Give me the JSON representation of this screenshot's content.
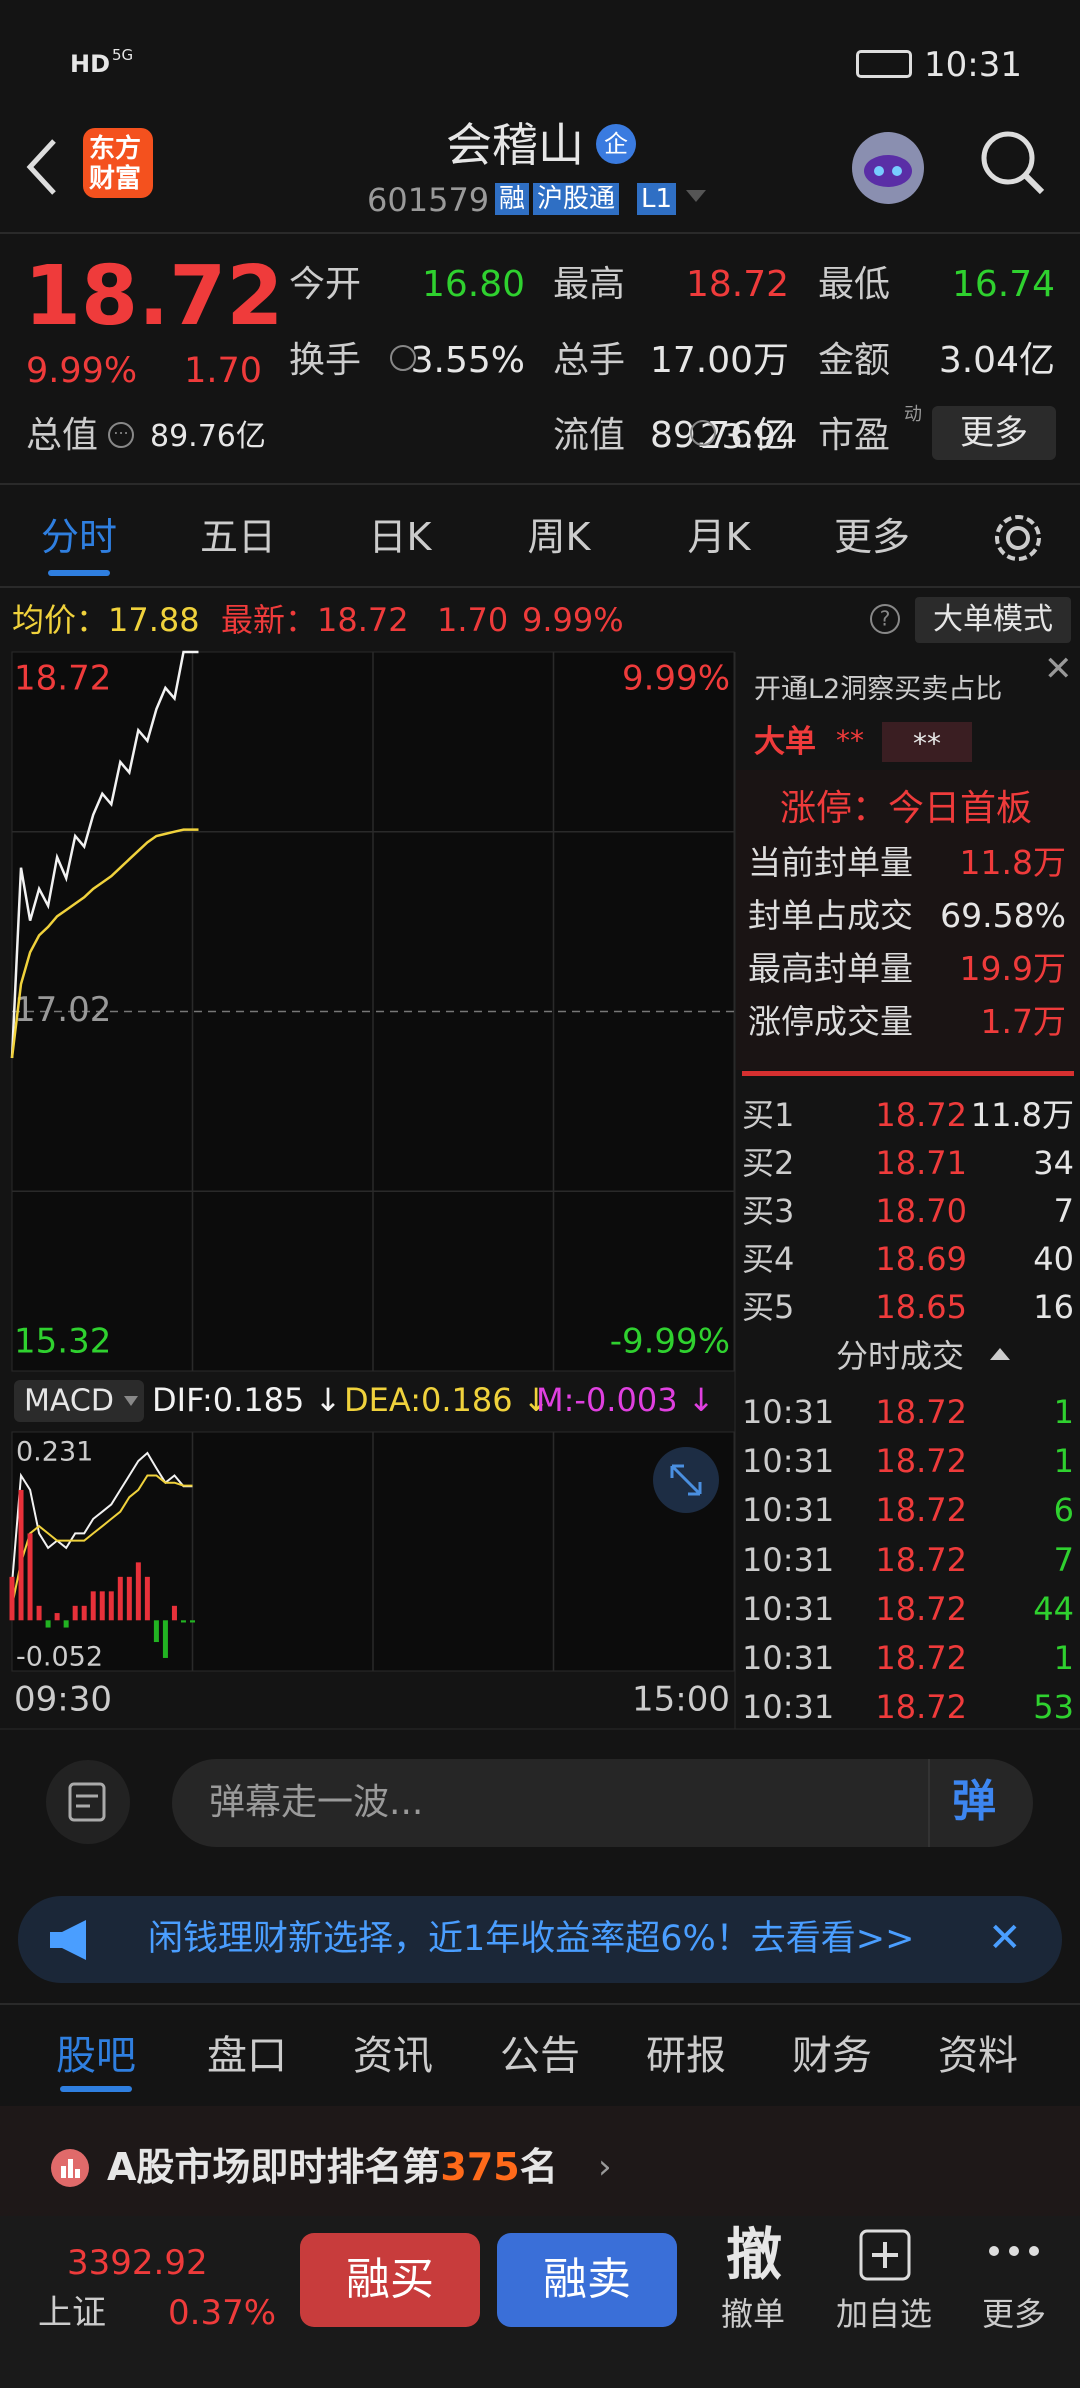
{
  "status_bar": {
    "network": "HD",
    "signal": "5G",
    "time": "10:31"
  },
  "header": {
    "logo": [
      "东方",
      "财富"
    ],
    "title": "会稽山",
    "badge": "企",
    "code": "601579",
    "tags": [
      "融",
      "沪股通",
      "L1"
    ]
  },
  "quote": {
    "price": "18.72",
    "change_pct": "9.99%",
    "change": "1.70",
    "stats": [
      {
        "label": "今开",
        "value": "16.80"
      },
      {
        "label": "最高",
        "value": "18.72"
      },
      {
        "label": "最低",
        "value": "16.74"
      },
      {
        "label": "换手",
        "value": "3.55%"
      },
      {
        "label": "总手",
        "value": "17.00万"
      },
      {
        "label": "金额",
        "value": "3.04亿"
      },
      {
        "label": "流值",
        "value": "89.76亿"
      },
      {
        "label": "市盈",
        "sup": "动",
        "value": "23.94"
      }
    ],
    "total_value_label": "总值",
    "total_value": "89.76亿",
    "more": "更多"
  },
  "chart_tabs": [
    "分时",
    "五日",
    "日K",
    "周K",
    "月K",
    "更多"
  ],
  "chart_info": {
    "avg_label": "均价：",
    "avg": "17.88",
    "latest_label": "最新：",
    "latest": "18.72",
    "change": "1.70",
    "change_pct": "9.99%",
    "mode": "大单模式"
  },
  "chart_data": [
    {
      "type": "line",
      "x": [
        0,
        3,
        6,
        9,
        12,
        15,
        18,
        21,
        24,
        27,
        30,
        33,
        36,
        39,
        42,
        45,
        48,
        51,
        54,
        57,
        60,
        62
      ],
      "xlim": [
        0,
        240
      ],
      "ylim": [
        15.32,
        18.72
      ],
      "yticks": [
        18.72,
        17.02,
        15.32
      ],
      "y2lim": [
        -9.99,
        9.99
      ],
      "y2ticks": [
        {
          "value": 9.99,
          "label": "9.99%"
        },
        {
          "value": -9.99,
          "label": "-9.99%"
        }
      ],
      "series": [
        {
          "color": "#f2f2f2",
          "values": [
            16.8,
            17.7,
            17.45,
            17.6,
            17.52,
            17.75,
            17.65,
            17.85,
            17.8,
            17.95,
            18.05,
            18.0,
            18.2,
            18.15,
            18.35,
            18.3,
            18.45,
            18.55,
            18.5,
            18.72,
            18.72,
            18.72
          ]
        },
        {
          "color": "#f0d23c",
          "values": [
            16.8,
            17.15,
            17.3,
            17.38,
            17.42,
            17.47,
            17.5,
            17.53,
            17.56,
            17.6,
            17.63,
            17.66,
            17.7,
            17.74,
            17.78,
            17.82,
            17.85,
            17.86,
            17.87,
            17.88,
            17.88,
            17.88
          ]
        }
      ]
    },
    {
      "type": "macd",
      "indicator": "MACD",
      "x": [
        0,
        3,
        6,
        9,
        12,
        15,
        18,
        21,
        24,
        27,
        30,
        33,
        36,
        39,
        42,
        45,
        48,
        51,
        54,
        57,
        60
      ],
      "xlim": [
        0,
        240
      ],
      "xticks": [
        {
          "value": 0,
          "label": "09:30"
        },
        {
          "value": 240,
          "label": "15:00"
        }
      ],
      "ylim": [
        -0.07,
        0.26
      ],
      "yticks": [
        0.231,
        -0.052
      ],
      "series": [
        {
          "name": "DIF:0.185 ↓",
          "kind": "line",
          "color": "#f2f2f2",
          "values": [
            0.05,
            0.2,
            0.18,
            0.12,
            0.1,
            0.11,
            0.1,
            0.12,
            0.12,
            0.14,
            0.15,
            0.16,
            0.18,
            0.2,
            0.22,
            0.231,
            0.21,
            0.19,
            0.2,
            0.185,
            0.185
          ]
        },
        {
          "name": "DEA:0.186 ↓",
          "kind": "line",
          "color": "#f0d23c",
          "values": [
            0.02,
            0.08,
            0.12,
            0.13,
            0.12,
            0.11,
            0.11,
            0.11,
            0.11,
            0.12,
            0.13,
            0.14,
            0.15,
            0.17,
            0.18,
            0.2,
            0.2,
            0.19,
            0.19,
            0.186,
            0.186
          ]
        },
        {
          "name": "M:-0.003 ↓",
          "kind": "bar",
          "color": "#e8313a",
          "negative_color": "#22b322",
          "legend_color": "#e040e0",
          "values": [
            0.06,
            0.18,
            0.12,
            0.02,
            -0.01,
            0.01,
            -0.01,
            0.02,
            0.02,
            0.04,
            0.04,
            0.04,
            0.06,
            0.06,
            0.08,
            0.06,
            -0.03,
            -0.052,
            0.02,
            -0.003,
            -0.003
          ]
        }
      ]
    }
  ],
  "l2_panel": {
    "promo": "开通L2洞察买卖占比",
    "big_order_label": "大单",
    "big_order_a": "**",
    "big_order_b": "**",
    "limit_status": "涨停：今日首板",
    "rows": [
      [
        "当前封单量",
        "11.8万"
      ],
      [
        "封单占成交",
        "69.58%"
      ],
      [
        "最高封单量",
        "19.9万"
      ],
      [
        "涨停成交量",
        "1.7万"
      ]
    ]
  },
  "order_book": [
    [
      "买1",
      "18.72",
      "11.8万"
    ],
    [
      "买2",
      "18.71",
      "34"
    ],
    [
      "买3",
      "18.70",
      "7"
    ],
    [
      "买4",
      "18.69",
      "40"
    ],
    [
      "买5",
      "18.65",
      "16"
    ]
  ],
  "trades_title": "分时成交",
  "trades": [
    [
      "10:31",
      "18.72",
      "1"
    ],
    [
      "10:31",
      "18.72",
      "1"
    ],
    [
      "10:31",
      "18.72",
      "6"
    ],
    [
      "10:31",
      "18.72",
      "7"
    ],
    [
      "10:31",
      "18.72",
      "44"
    ],
    [
      "10:31",
      "18.72",
      "1"
    ],
    [
      "10:31",
      "18.72",
      "53"
    ]
  ],
  "comment": {
    "placeholder": "弹幕走一波...",
    "button": "弹"
  },
  "banner": "闲钱理财新选择，近1年收益率超6%！去看看>>",
  "info_tabs": [
    "股吧",
    "盘口",
    "资讯",
    "公告",
    "研报",
    "财务",
    "资料"
  ],
  "ranking": {
    "prefix": "A股市场即时排名第",
    "rank": "375",
    "suffix": "名"
  },
  "bottom_bar": {
    "index_value": "3392.92",
    "index_name": "上证",
    "index_change": "0.37%",
    "buy": "融买",
    "sell": "融卖",
    "cancel_icon": "撤",
    "cancel": "撤单",
    "watch": "加自选",
    "more": "更多"
  }
}
